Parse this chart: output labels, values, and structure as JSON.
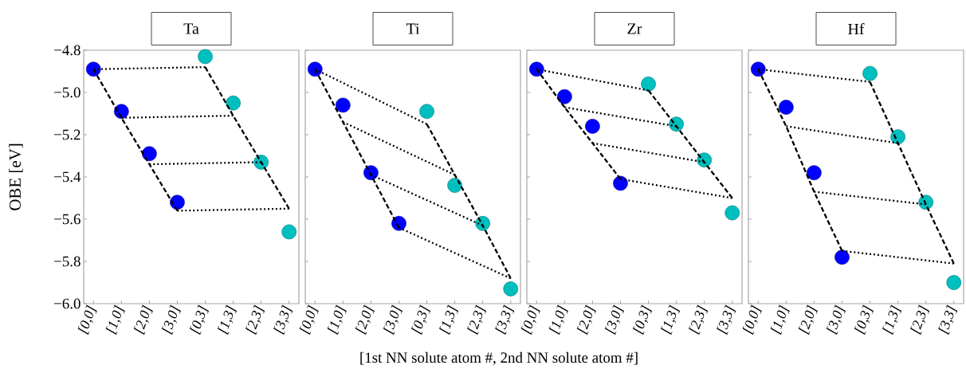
{
  "chart_data": [
    {
      "type": "scatter",
      "title": "Ta",
      "ylabel": "OBE  [eV]",
      "categories": [
        "[0,0]",
        "[1,0]",
        "[2,0]",
        "[3,0]",
        "[0,3]",
        "[1,3]",
        "[2,3]",
        "[3,3]"
      ],
      "ylim": [
        -6.0,
        -4.8
      ],
      "yticks": [
        {
          "value": -6.0,
          "label": "−6.0"
        },
        {
          "value": -5.8,
          "label": "−5.8"
        },
        {
          "value": -5.6,
          "label": "−5.6"
        },
        {
          "value": -5.4,
          "label": "−5.4"
        },
        {
          "value": -5.2,
          "label": "−5.2"
        },
        {
          "value": -5.0,
          "label": "−5.0"
        },
        {
          "value": -4.8,
          "label": "−4.8"
        }
      ],
      "grid": false,
      "series": [
        {
          "type": "line",
          "line_style": "dashed",
          "marker": "none",
          "color": "#000000",
          "values": [
            -4.89,
            -5.12,
            -5.34,
            -5.56,
            null,
            null,
            null,
            null
          ]
        },
        {
          "type": "line",
          "line_style": "dashed",
          "marker": "none",
          "color": "#000000",
          "values": [
            null,
            null,
            null,
            null,
            -4.88,
            -5.11,
            -5.33,
            -5.55
          ]
        },
        {
          "type": "line",
          "line_style": "dotted",
          "marker": "none",
          "color": "#000000",
          "values": [
            -4.89,
            null,
            null,
            null,
            -4.88,
            null,
            null,
            null
          ]
        },
        {
          "type": "line",
          "line_style": "dotted",
          "marker": "none",
          "color": "#000000",
          "values": [
            null,
            -5.12,
            null,
            null,
            null,
            -5.11,
            null,
            null
          ]
        },
        {
          "type": "line",
          "line_style": "dotted",
          "marker": "none",
          "color": "#000000",
          "values": [
            null,
            null,
            -5.34,
            null,
            null,
            null,
            -5.33,
            null
          ]
        },
        {
          "type": "line",
          "line_style": "dotted",
          "marker": "none",
          "color": "#000000",
          "values": [
            null,
            null,
            null,
            -5.56,
            null,
            null,
            null,
            -5.55
          ]
        },
        {
          "marker": "circle",
          "color": "#0000ff",
          "values": [
            -4.89,
            -5.09,
            -5.29,
            -5.52,
            null,
            null,
            null,
            null
          ]
        },
        {
          "marker": "circle",
          "color": "#00bfbf",
          "values": [
            null,
            null,
            null,
            null,
            -4.83,
            -5.05,
            -5.33,
            -5.66
          ]
        }
      ]
    },
    {
      "type": "scatter",
      "title": "Ti",
      "xlabel": "[1st NN solute atom #, 2nd NN solute atom #]",
      "categories": [
        "[0,0]",
        "[1,0]",
        "[2,0]",
        "[3,0]",
        "[0,3]",
        "[1,3]",
        "[2,3]",
        "[3,3]"
      ],
      "ylim": [
        -6.0,
        -4.8
      ],
      "yticks": [
        -6.0,
        -5.8,
        -5.6,
        -5.4,
        -5.2,
        -5.0,
        -4.8
      ],
      "tick_labels": "x",
      "grid": false,
      "series": [
        {
          "type": "line",
          "line_style": "dashed",
          "marker": "none",
          "color": "#000000",
          "values": [
            -4.89,
            -5.14,
            -5.39,
            -5.64,
            null,
            null,
            null,
            null
          ]
        },
        {
          "type": "line",
          "line_style": "dashed",
          "marker": "none",
          "color": "#000000",
          "values": [
            null,
            null,
            null,
            null,
            -5.15,
            -5.39,
            -5.63,
            -5.88
          ]
        },
        {
          "type": "line",
          "line_style": "dotted",
          "marker": "none",
          "color": "#000000",
          "values": [
            -4.89,
            null,
            null,
            null,
            -5.15,
            null,
            null,
            null
          ]
        },
        {
          "type": "line",
          "line_style": "dotted",
          "marker": "none",
          "color": "#000000",
          "values": [
            null,
            -5.14,
            null,
            null,
            null,
            -5.39,
            null,
            null
          ]
        },
        {
          "type": "line",
          "line_style": "dotted",
          "marker": "none",
          "color": "#000000",
          "values": [
            null,
            null,
            -5.39,
            null,
            null,
            null,
            -5.63,
            null
          ]
        },
        {
          "type": "line",
          "line_style": "dotted",
          "marker": "none",
          "color": "#000000",
          "values": [
            null,
            null,
            null,
            -5.64,
            null,
            null,
            null,
            -5.88
          ]
        },
        {
          "marker": "circle",
          "color": "#0000ff",
          "values": [
            -4.89,
            -5.06,
            -5.38,
            -5.62,
            null,
            null,
            null,
            null
          ]
        },
        {
          "marker": "circle",
          "color": "#00bfbf",
          "values": [
            null,
            null,
            null,
            null,
            -5.09,
            -5.44,
            -5.62,
            -5.93
          ]
        }
      ]
    },
    {
      "type": "scatter",
      "title": "Zr",
      "categories": [
        "[0,0]",
        "[1,0]",
        "[2,0]",
        "[3,0]",
        "[0,3]",
        "[1,3]",
        "[2,3]",
        "[3,3]"
      ],
      "ylim": [
        -6.0,
        -4.8
      ],
      "yticks": [
        -6.0,
        -5.8,
        -5.6,
        -5.4,
        -5.2,
        -5.0,
        -4.8
      ],
      "tick_labels": "x",
      "grid": false,
      "series": [
        {
          "type": "line",
          "line_style": "dashed",
          "marker": "none",
          "color": "#000000",
          "values": [
            -4.89,
            -5.07,
            -5.24,
            -5.41,
            null,
            null,
            null,
            null
          ]
        },
        {
          "type": "line",
          "line_style": "dashed",
          "marker": "none",
          "color": "#000000",
          "values": [
            null,
            null,
            null,
            null,
            -4.99,
            -5.16,
            -5.33,
            -5.5
          ]
        },
        {
          "type": "line",
          "line_style": "dotted",
          "marker": "none",
          "color": "#000000",
          "values": [
            -4.89,
            null,
            null,
            null,
            -4.99,
            null,
            null,
            null
          ]
        },
        {
          "type": "line",
          "line_style": "dotted",
          "marker": "none",
          "color": "#000000",
          "values": [
            null,
            -5.07,
            null,
            null,
            null,
            -5.16,
            null,
            null
          ]
        },
        {
          "type": "line",
          "line_style": "dotted",
          "marker": "none",
          "color": "#000000",
          "values": [
            null,
            null,
            -5.24,
            null,
            null,
            null,
            -5.33,
            null
          ]
        },
        {
          "type": "line",
          "line_style": "dotted",
          "marker": "none",
          "color": "#000000",
          "values": [
            null,
            null,
            null,
            -5.41,
            null,
            null,
            null,
            -5.5
          ]
        },
        {
          "marker": "circle",
          "color": "#0000ff",
          "values": [
            -4.89,
            -5.02,
            -5.16,
            -5.43,
            null,
            null,
            null,
            null
          ]
        },
        {
          "marker": "circle",
          "color": "#00bfbf",
          "values": [
            null,
            null,
            null,
            null,
            -4.96,
            -5.15,
            -5.32,
            -5.57
          ]
        }
      ]
    },
    {
      "type": "scatter",
      "title": "Hf",
      "categories": [
        "[0,0]",
        "[1,0]",
        "[2,0]",
        "[3,0]",
        "[0,3]",
        "[1,3]",
        "[2,3]",
        "[3,3]"
      ],
      "ylim": [
        -6.0,
        -4.8
      ],
      "yticks": [
        -6.0,
        -5.8,
        -5.6,
        -5.4,
        -5.2,
        -5.0,
        -4.8
      ],
      "tick_labels": "x",
      "grid": false,
      "series": [
        {
          "type": "line",
          "line_style": "dashed",
          "marker": "none",
          "color": "#000000",
          "values": [
            -4.89,
            -5.16,
            -5.47,
            -5.75,
            null,
            null,
            null,
            null
          ]
        },
        {
          "type": "line",
          "line_style": "dashed",
          "marker": "none",
          "color": "#000000",
          "values": [
            null,
            null,
            null,
            null,
            -4.95,
            -5.24,
            -5.53,
            -5.81
          ]
        },
        {
          "type": "line",
          "line_style": "dotted",
          "marker": "none",
          "color": "#000000",
          "values": [
            -4.89,
            null,
            null,
            null,
            -4.95,
            null,
            null,
            null
          ]
        },
        {
          "type": "line",
          "line_style": "dotted",
          "marker": "none",
          "color": "#000000",
          "values": [
            null,
            -5.16,
            null,
            null,
            null,
            -5.24,
            null,
            null
          ]
        },
        {
          "type": "line",
          "line_style": "dotted",
          "marker": "none",
          "color": "#000000",
          "values": [
            null,
            null,
            -5.47,
            null,
            null,
            null,
            -5.53,
            null
          ]
        },
        {
          "type": "line",
          "line_style": "dotted",
          "marker": "none",
          "color": "#000000",
          "values": [
            null,
            null,
            null,
            -5.75,
            null,
            null,
            null,
            -5.81
          ]
        },
        {
          "marker": "circle",
          "color": "#0000ff",
          "values": [
            -4.89,
            -5.07,
            -5.38,
            -5.78,
            null,
            null,
            null,
            null
          ]
        },
        {
          "marker": "circle",
          "color": "#00bfbf",
          "values": [
            null,
            null,
            null,
            null,
            -4.91,
            -5.21,
            -5.52,
            -5.9
          ]
        }
      ]
    }
  ]
}
